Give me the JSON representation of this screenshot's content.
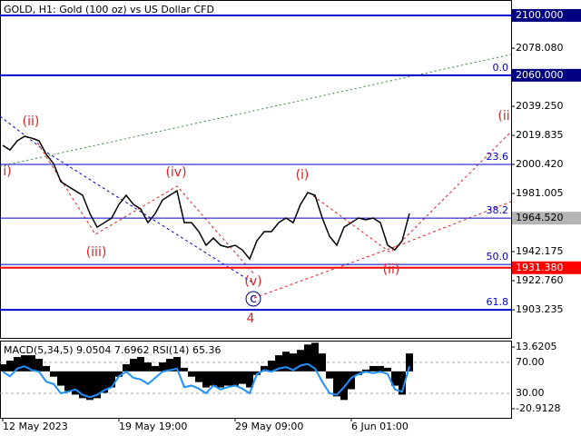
{
  "chart_data": [
    {
      "type": "line",
      "title": "GOLD, H1:  Gold (100 oz) vs US Dollar CFD",
      "categories": [
        "12 May 2023",
        null,
        null,
        null,
        null,
        null,
        null,
        null,
        null,
        null,
        null,
        null,
        null,
        null,
        null,
        null,
        "19 May 19:00",
        null,
        null,
        null,
        null,
        null,
        null,
        null,
        null,
        null,
        null,
        null,
        null,
        null,
        null,
        null,
        "29 May 09:00",
        null,
        null,
        null,
        null,
        null,
        null,
        null,
        null,
        null,
        null,
        null,
        null,
        null,
        null,
        null,
        "6 Jun 01:00",
        null,
        null,
        null,
        null,
        null,
        null,
        null,
        null
      ],
      "series": [
        {
          "name": "GOLD",
          "color": "#000000",
          "values": [
            2013.2,
            2010.1,
            2016.2,
            2019.2,
            2018.0,
            2016.2,
            2007.1,
            2001.0,
            1988.9,
            1985.8,
            1982.8,
            1979.8,
            1967.6,
            1958.5,
            1961.5,
            1964.6,
            1973.7,
            1979.8,
            1973.7,
            1970.6,
            1961.5,
            1967.6,
            1976.7,
            1979.8,
            1982.8,
            1961.5,
            1961.5,
            1955.5,
            1946.4,
            1951.2,
            1946.4,
            1945.1,
            1946.4,
            1943.3,
            1937.2,
            1949.4,
            1955.5,
            1955.5,
            1961.5,
            1964.6,
            1961.5,
            1973.7,
            1981.6,
            1979.8,
            1964.6,
            1952.4,
            1946.4,
            1958.5,
            1961.5,
            1964.6,
            1963.4,
            1964.6,
            1961.5,
            1946.4,
            1943.3,
            1949.4,
            1967.6
          ]
        }
      ],
      "ylim": [
        1884.5,
        2110.3
      ],
      "yticks": [
        {
          "value": 2100,
          "label": "2100.000",
          "box": "#000080"
        },
        {
          "value": 2078.08,
          "label": "2078.080"
        },
        {
          "value": 2060,
          "label": "2060.000",
          "box": "#000080"
        },
        {
          "value": 2039.25,
          "label": "2039.250"
        },
        2019.835,
        {
          "value": 2000.42,
          "label": "2000.420"
        },
        {
          "value": 1981.005,
          "label": "1981.005"
        },
        {
          "value": 1964.52,
          "label": "1964.520",
          "box": "#b4b4b4"
        },
        1942.175,
        {
          "value": 1931.38,
          "label": "1931.380",
          "box": "#ff0000"
        },
        {
          "value": 1922.76,
          "label": "1922.760"
        },
        1903.235
      ],
      "hlines": [
        {
          "value": 2100,
          "color": "#0000cc"
        },
        {
          "value": 1931.38,
          "color": "#ff0000"
        }
      ],
      "fib_color": "#0000cc",
      "fib_levels": [
        {
          "value": 2060,
          "label": "0.0"
        },
        {
          "value": 2000.42,
          "label": "23.6"
        },
        {
          "value": 1964.52,
          "label": "38.2"
        },
        {
          "value": 1933.6,
          "label": "50.0"
        },
        {
          "value": 1903.235,
          "label": "61.8"
        }
      ],
      "annotations": [
        {
          "text": "(ii)",
          "color": "#e02020"
        },
        {
          "text": "i)",
          "color": "#e02020"
        },
        {
          "text": "(iii)",
          "color": "#e02020"
        },
        {
          "text": "(iv)",
          "color": "#e02020"
        },
        {
          "text": "(v)",
          "color": "#e02020"
        },
        {
          "text": "c",
          "color": "#000080"
        },
        {
          "text": "4",
          "color": "#e02020"
        },
        {
          "text": "(i)",
          "color": "#e02020"
        },
        {
          "text": "(ii)",
          "color": "#e02020"
        },
        {
          "text": "(ii",
          "color": "#e02020"
        }
      ]
    },
    {
      "type": "macd-rsi",
      "title": "MACD(5,34,5) 9.0504 7.6962 RSI(14) 65.36",
      "series": [
        {
          "name": "MACD",
          "color": "#000000",
          "values": [
            4,
            6,
            8,
            9,
            9,
            7,
            3,
            -3,
            -8,
            -11,
            -13,
            -15,
            -16,
            -15,
            -12,
            -9,
            -3,
            4,
            7,
            8,
            5,
            3,
            5,
            7,
            8,
            2,
            -3,
            -6,
            -9,
            -8,
            -9,
            -8,
            -8,
            -7,
            -9,
            -2,
            3,
            6,
            9,
            11,
            10,
            12,
            15,
            16,
            10,
            -4,
            -14,
            -16,
            -10,
            -2,
            1,
            3,
            3,
            2,
            -8,
            -13,
            10
          ]
        },
        {
          "name": "RSI",
          "color": "#1e90ff",
          "axis": "y2",
          "values": [
            58,
            52,
            62,
            65,
            60,
            58,
            45,
            42,
            30,
            32,
            35,
            28,
            25,
            28,
            34,
            38,
            52,
            58,
            50,
            48,
            42,
            50,
            58,
            60,
            62,
            38,
            40,
            36,
            30,
            40,
            35,
            38,
            40,
            36,
            30,
            55,
            60,
            58,
            62,
            64,
            60,
            66,
            68,
            62,
            45,
            30,
            28,
            38,
            50,
            55,
            58,
            56,
            58,
            55,
            35,
            32,
            65
          ]
        }
      ],
      "ylim": [
        -25.99,
        17.18
      ],
      "yticks": [
        13.6205,
        -20.9128
      ],
      "y2lim": [
        -1.8,
        98.2
      ],
      "y2ticks": [
        {
          "value": 70,
          "label": "70.00"
        },
        {
          "value": 30,
          "label": "30.00"
        }
      ],
      "grid": true
    }
  ]
}
